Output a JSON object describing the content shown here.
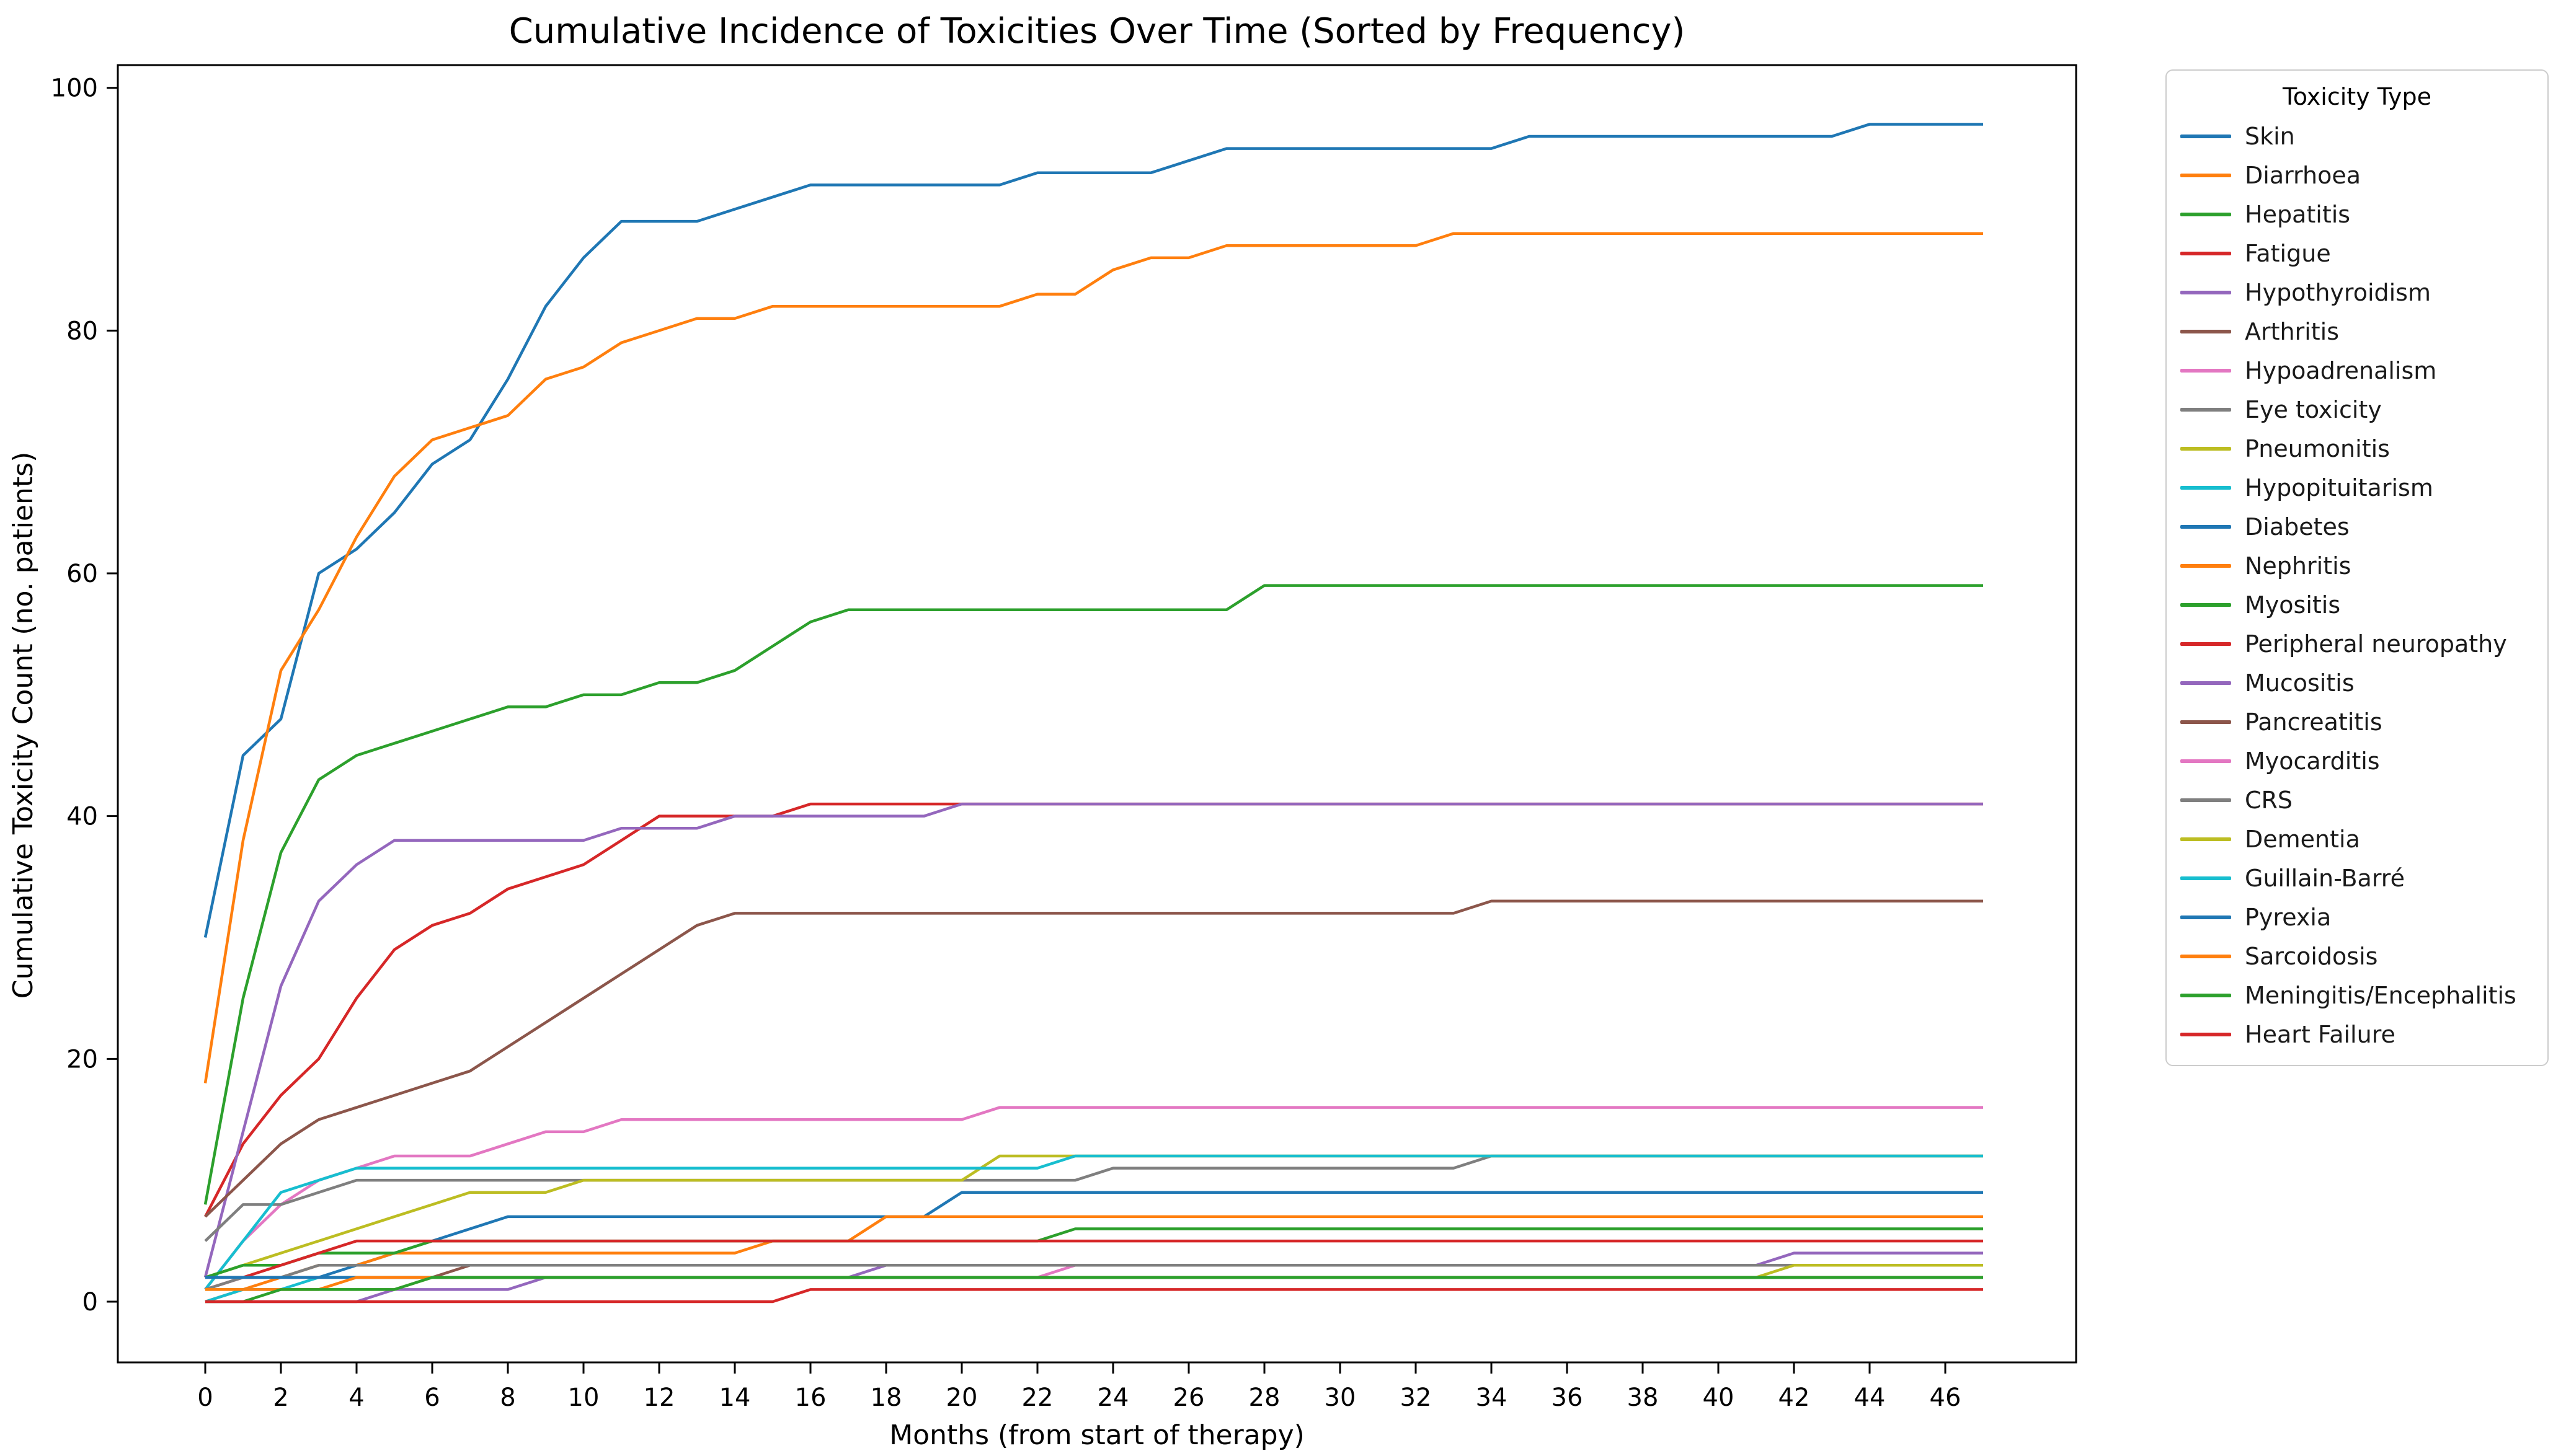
{
  "chart_data": {
    "type": "line",
    "title": "Cumulative Incidence of Toxicities Over Time (Sorted by Frequency)",
    "xlabel": "Months (from start of therapy)",
    "ylabel": "Cumulative Toxicity Count (no. patients)",
    "legend_title": "Toxicity Type",
    "legend_position": "right-outside",
    "grid": false,
    "xlim": [
      -2.3,
      49.5
    ],
    "ylim": [
      -5,
      102.5
    ],
    "xticks": [
      0,
      2,
      4,
      6,
      8,
      10,
      12,
      14,
      16,
      18,
      20,
      22,
      24,
      26,
      28,
      30,
      32,
      34,
      36,
      38,
      40,
      42,
      44,
      46
    ],
    "yticks": [
      0,
      20,
      40,
      60,
      80,
      100
    ],
    "x_months": "0 to 47 step 1",
    "series": [
      {
        "name": "Skin",
        "color": "#1f77b4",
        "values": [
          30,
          45,
          48,
          60,
          62,
          65,
          69,
          71,
          76,
          82,
          86,
          89,
          89,
          89,
          90,
          91,
          92,
          92,
          92,
          92,
          92,
          92,
          93,
          93,
          93,
          93,
          94,
          95,
          95,
          95,
          95,
          95,
          95,
          95,
          95,
          96,
          96,
          96,
          96,
          96,
          96,
          96,
          96,
          96,
          97,
          97,
          97,
          97
        ]
      },
      {
        "name": "Diarrhoea",
        "color": "#ff7f0e",
        "values": [
          18,
          38,
          52,
          57,
          63,
          68,
          71,
          72,
          73,
          76,
          77,
          79,
          80,
          81,
          81,
          82,
          82,
          82,
          82,
          82,
          82,
          82,
          83,
          83,
          85,
          86,
          86,
          87,
          87,
          87,
          87,
          87,
          87,
          88,
          88,
          88,
          88,
          88,
          88,
          88,
          88,
          88,
          88,
          88,
          88,
          88,
          88,
          88
        ]
      },
      {
        "name": "Hepatitis",
        "color": "#2ca02c",
        "values": [
          8,
          25,
          37,
          43,
          45,
          46,
          47,
          48,
          49,
          49,
          50,
          50,
          51,
          51,
          52,
          54,
          56,
          57,
          57,
          57,
          57,
          57,
          57,
          57,
          57,
          57,
          57,
          57,
          59,
          59,
          59,
          59,
          59,
          59,
          59,
          59,
          59,
          59,
          59,
          59,
          59,
          59,
          59,
          59,
          59,
          59,
          59,
          59
        ]
      },
      {
        "name": "Fatigue",
        "color": "#d62728",
        "values": [
          7,
          13,
          17,
          20,
          25,
          29,
          31,
          32,
          34,
          35,
          36,
          38,
          40,
          40,
          40,
          40,
          41,
          41,
          41,
          41,
          41,
          41,
          41,
          41,
          41,
          41,
          41,
          41,
          41,
          41,
          41,
          41,
          41,
          41,
          41,
          41,
          41,
          41,
          41,
          41,
          41,
          41,
          41,
          41,
          41,
          41,
          41,
          41
        ]
      },
      {
        "name": "Hypothyroidism",
        "color": "#9467bd",
        "values": [
          2,
          14,
          26,
          33,
          36,
          38,
          38,
          38,
          38,
          38,
          38,
          39,
          39,
          39,
          40,
          40,
          40,
          40,
          40,
          40,
          41,
          41,
          41,
          41,
          41,
          41,
          41,
          41,
          41,
          41,
          41,
          41,
          41,
          41,
          41,
          41,
          41,
          41,
          41,
          41,
          41,
          41,
          41,
          41,
          41,
          41,
          41,
          41
        ]
      },
      {
        "name": "Arthritis",
        "color": "#8c564b",
        "values": [
          7,
          10,
          13,
          15,
          16,
          17,
          18,
          19,
          21,
          23,
          25,
          27,
          29,
          31,
          32,
          32,
          32,
          32,
          32,
          32,
          32,
          32,
          32,
          32,
          32,
          32,
          32,
          32,
          32,
          32,
          32,
          32,
          32,
          32,
          33,
          33,
          33,
          33,
          33,
          33,
          33,
          33,
          33,
          33,
          33,
          33,
          33,
          33
        ]
      },
      {
        "name": "Hypoadrenalism",
        "color": "#e377c2",
        "values": [
          1,
          5,
          8,
          10,
          11,
          12,
          12,
          12,
          13,
          14,
          14,
          15,
          15,
          15,
          15,
          15,
          15,
          15,
          15,
          15,
          15,
          16,
          16,
          16,
          16,
          16,
          16,
          16,
          16,
          16,
          16,
          16,
          16,
          16,
          16,
          16,
          16,
          16,
          16,
          16,
          16,
          16,
          16,
          16,
          16,
          16,
          16,
          16
        ]
      },
      {
        "name": "Eye toxicity",
        "color": "#7f7f7f",
        "values": [
          5,
          8,
          8,
          9,
          10,
          10,
          10,
          10,
          10,
          10,
          10,
          10,
          10,
          10,
          10,
          10,
          10,
          10,
          10,
          10,
          10,
          10,
          10,
          10,
          11,
          11,
          11,
          11,
          11,
          11,
          11,
          11,
          11,
          11,
          12,
          12,
          12,
          12,
          12,
          12,
          12,
          12,
          12,
          12,
          12,
          12,
          12,
          12
        ]
      },
      {
        "name": "Pneumonitis",
        "color": "#bcbd22",
        "values": [
          2,
          3,
          4,
          5,
          6,
          7,
          8,
          9,
          9,
          9,
          10,
          10,
          10,
          10,
          10,
          10,
          10,
          10,
          10,
          10,
          10,
          12,
          12,
          12,
          12,
          12,
          12,
          12,
          12,
          12,
          12,
          12,
          12,
          12,
          12,
          12,
          12,
          12,
          12,
          12,
          12,
          12,
          12,
          12,
          12,
          12,
          12,
          12
        ]
      },
      {
        "name": "Hypopituitarism",
        "color": "#17becf",
        "values": [
          1,
          5,
          9,
          10,
          11,
          11,
          11,
          11,
          11,
          11,
          11,
          11,
          11,
          11,
          11,
          11,
          11,
          11,
          11,
          11,
          11,
          11,
          11,
          12,
          12,
          12,
          12,
          12,
          12,
          12,
          12,
          12,
          12,
          12,
          12,
          12,
          12,
          12,
          12,
          12,
          12,
          12,
          12,
          12,
          12,
          12,
          12,
          12
        ]
      },
      {
        "name": "Diabetes",
        "color": "#1f77b4",
        "values": [
          2,
          2,
          2,
          2,
          3,
          4,
          5,
          6,
          7,
          7,
          7,
          7,
          7,
          7,
          7,
          7,
          7,
          7,
          7,
          7,
          9,
          9,
          9,
          9,
          9,
          9,
          9,
          9,
          9,
          9,
          9,
          9,
          9,
          9,
          9,
          9,
          9,
          9,
          9,
          9,
          9,
          9,
          9,
          9,
          9,
          9,
          9,
          9
        ]
      },
      {
        "name": "Nephritis",
        "color": "#ff7f0e",
        "values": [
          0,
          1,
          2,
          3,
          3,
          4,
          4,
          4,
          4,
          4,
          4,
          4,
          4,
          4,
          4,
          5,
          5,
          5,
          7,
          7,
          7,
          7,
          7,
          7,
          7,
          7,
          7,
          7,
          7,
          7,
          7,
          7,
          7,
          7,
          7,
          7,
          7,
          7,
          7,
          7,
          7,
          7,
          7,
          7,
          7,
          7,
          7,
          7
        ]
      },
      {
        "name": "Myositis",
        "color": "#2ca02c",
        "values": [
          2,
          3,
          3,
          4,
          4,
          4,
          5,
          5,
          5,
          5,
          5,
          5,
          5,
          5,
          5,
          5,
          5,
          5,
          5,
          5,
          5,
          5,
          5,
          6,
          6,
          6,
          6,
          6,
          6,
          6,
          6,
          6,
          6,
          6,
          6,
          6,
          6,
          6,
          6,
          6,
          6,
          6,
          6,
          6,
          6,
          6,
          6,
          6
        ]
      },
      {
        "name": "Peripheral neuropathy",
        "color": "#d62728",
        "values": [
          1,
          2,
          3,
          4,
          5,
          5,
          5,
          5,
          5,
          5,
          5,
          5,
          5,
          5,
          5,
          5,
          5,
          5,
          5,
          5,
          5,
          5,
          5,
          5,
          5,
          5,
          5,
          5,
          5,
          5,
          5,
          5,
          5,
          5,
          5,
          5,
          5,
          5,
          5,
          5,
          5,
          5,
          5,
          5,
          5,
          5,
          5,
          5
        ]
      },
      {
        "name": "Mucositis",
        "color": "#9467bd",
        "values": [
          0,
          0,
          0,
          0,
          0,
          1,
          1,
          1,
          1,
          2,
          2,
          2,
          2,
          2,
          2,
          2,
          2,
          2,
          3,
          3,
          3,
          3,
          3,
          3,
          3,
          3,
          3,
          3,
          3,
          3,
          3,
          3,
          3,
          3,
          3,
          3,
          3,
          3,
          3,
          3,
          3,
          3,
          4,
          4,
          4,
          4,
          4,
          4
        ]
      },
      {
        "name": "Pancreatitis",
        "color": "#8c564b",
        "values": [
          2,
          2,
          2,
          2,
          2,
          2,
          2,
          3,
          3,
          3,
          3,
          3,
          3,
          3,
          3,
          3,
          3,
          3,
          3,
          3,
          3,
          3,
          3,
          3,
          3,
          3,
          3,
          3,
          3,
          3,
          3,
          3,
          3,
          3,
          3,
          3,
          3,
          3,
          3,
          3,
          3,
          3,
          3,
          3,
          3,
          3,
          3,
          3
        ]
      },
      {
        "name": "Myocarditis",
        "color": "#e377c2",
        "values": [
          1,
          2,
          2,
          2,
          2,
          2,
          2,
          2,
          2,
          2,
          2,
          2,
          2,
          2,
          2,
          2,
          2,
          2,
          2,
          2,
          2,
          2,
          2,
          3,
          3,
          3,
          3,
          3,
          3,
          3,
          3,
          3,
          3,
          3,
          3,
          3,
          3,
          3,
          3,
          3,
          3,
          3,
          3,
          3,
          3,
          3,
          3,
          3
        ]
      },
      {
        "name": "CRS",
        "color": "#7f7f7f",
        "values": [
          1,
          2,
          2,
          3,
          3,
          3,
          3,
          3,
          3,
          3,
          3,
          3,
          3,
          3,
          3,
          3,
          3,
          3,
          3,
          3,
          3,
          3,
          3,
          3,
          3,
          3,
          3,
          3,
          3,
          3,
          3,
          3,
          3,
          3,
          3,
          3,
          3,
          3,
          3,
          3,
          3,
          3,
          3,
          3,
          3,
          3,
          3,
          3
        ]
      },
      {
        "name": "Dementia",
        "color": "#bcbd22",
        "values": [
          1,
          1,
          1,
          1,
          1,
          1,
          2,
          2,
          2,
          2,
          2,
          2,
          2,
          2,
          2,
          2,
          2,
          2,
          2,
          2,
          2,
          2,
          2,
          2,
          2,
          2,
          2,
          2,
          2,
          2,
          2,
          2,
          2,
          2,
          2,
          2,
          2,
          2,
          2,
          2,
          2,
          2,
          3,
          3,
          3,
          3,
          3,
          3
        ]
      },
      {
        "name": "Guillain-Barré",
        "color": "#17becf",
        "values": [
          0,
          1,
          1,
          2,
          2,
          2,
          2,
          2,
          2,
          2,
          2,
          2,
          2,
          2,
          2,
          2,
          2,
          2,
          2,
          2,
          2,
          2,
          2,
          2,
          2,
          2,
          2,
          2,
          2,
          2,
          2,
          2,
          2,
          2,
          2,
          2,
          2,
          2,
          2,
          2,
          2,
          2,
          2,
          2,
          2,
          2,
          2,
          2
        ]
      },
      {
        "name": "Pyrexia",
        "color": "#1f77b4",
        "values": [
          2,
          2,
          2,
          2,
          2,
          2,
          2,
          2,
          2,
          2,
          2,
          2,
          2,
          2,
          2,
          2,
          2,
          2,
          2,
          2,
          2,
          2,
          2,
          2,
          2,
          2,
          2,
          2,
          2,
          2,
          2,
          2,
          2,
          2,
          2,
          2,
          2,
          2,
          2,
          2,
          2,
          2,
          2,
          2,
          2,
          2,
          2,
          2
        ]
      },
      {
        "name": "Sarcoidosis",
        "color": "#ff7f0e",
        "values": [
          1,
          1,
          1,
          1,
          2,
          2,
          2,
          2,
          2,
          2,
          2,
          2,
          2,
          2,
          2,
          2,
          2,
          2,
          2,
          2,
          2,
          2,
          2,
          2,
          2,
          2,
          2,
          2,
          2,
          2,
          2,
          2,
          2,
          2,
          2,
          2,
          2,
          2,
          2,
          2,
          2,
          2,
          2,
          2,
          2,
          2,
          2,
          2
        ]
      },
      {
        "name": "Meningitis/Encephalitis",
        "color": "#2ca02c",
        "values": [
          0,
          0,
          1,
          1,
          1,
          1,
          2,
          2,
          2,
          2,
          2,
          2,
          2,
          2,
          2,
          2,
          2,
          2,
          2,
          2,
          2,
          2,
          2,
          2,
          2,
          2,
          2,
          2,
          2,
          2,
          2,
          2,
          2,
          2,
          2,
          2,
          2,
          2,
          2,
          2,
          2,
          2,
          2,
          2,
          2,
          2,
          2,
          2
        ]
      },
      {
        "name": "Heart Failure",
        "color": "#d62728",
        "values": [
          0,
          0,
          0,
          0,
          0,
          0,
          0,
          0,
          0,
          0,
          0,
          0,
          0,
          0,
          0,
          0,
          1,
          1,
          1,
          1,
          1,
          1,
          1,
          1,
          1,
          1,
          1,
          1,
          1,
          1,
          1,
          1,
          1,
          1,
          1,
          1,
          1,
          1,
          1,
          1,
          1,
          1,
          1,
          1,
          1,
          1,
          1,
          1
        ]
      }
    ]
  }
}
